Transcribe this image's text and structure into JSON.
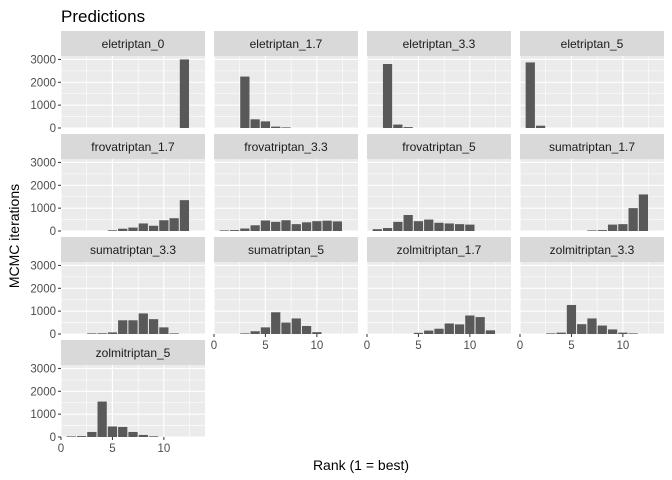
{
  "chart_data": {
    "type": "bar",
    "title": "Predictions",
    "xlabel": "Rank (1 = best)",
    "ylabel": "MCMC iterations",
    "xlim": [
      0,
      14
    ],
    "ylim": [
      0,
      3150
    ],
    "xticks": [
      0,
      5,
      10
    ],
    "yticks": [
      0,
      1000,
      2000,
      3000
    ],
    "grid": true,
    "colors": {
      "panel_bg": "#EBEBEB",
      "grid_major": "#FFFFFF",
      "strip_bg": "#D9D9D9",
      "bar": "#595959",
      "text": "#1A1A1A",
      "tick_text": "#4D4D4D"
    },
    "panels": [
      {
        "name": "eletriptan_0",
        "x": [
          12
        ],
        "values": [
          3000
        ]
      },
      {
        "name": "eletriptan_1.7",
        "x": [
          3,
          4,
          5,
          6,
          7
        ],
        "values": [
          2250,
          380,
          290,
          60,
          20
        ]
      },
      {
        "name": "eletriptan_3.3",
        "x": [
          2,
          3,
          4
        ],
        "values": [
          2800,
          150,
          40
        ]
      },
      {
        "name": "eletriptan_5",
        "x": [
          1,
          2
        ],
        "values": [
          2870,
          100
        ]
      },
      {
        "name": "frovatriptan_1.7",
        "x": [
          5,
          6,
          7,
          8,
          9,
          10,
          11,
          12
        ],
        "values": [
          30,
          100,
          150,
          330,
          230,
          470,
          560,
          1350
        ]
      },
      {
        "name": "frovatriptan_3.3",
        "x": [
          1,
          2,
          3,
          4,
          5,
          6,
          7,
          8,
          9,
          10,
          11,
          12
        ],
        "values": [
          10,
          40,
          110,
          250,
          460,
          400,
          470,
          300,
          380,
          430,
          450,
          420
        ]
      },
      {
        "name": "frovatriptan_5",
        "x": [
          1,
          2,
          3,
          4,
          5,
          6,
          7,
          8,
          9,
          10
        ],
        "values": [
          80,
          130,
          400,
          700,
          430,
          500,
          360,
          330,
          300,
          280
        ]
      },
      {
        "name": "sumatriptan_1.7",
        "x": [
          7,
          8,
          9,
          10,
          11,
          12
        ],
        "values": [
          10,
          40,
          280,
          300,
          1000,
          1600
        ]
      },
      {
        "name": "sumatriptan_3.3",
        "x": [
          3,
          4,
          5,
          6,
          7,
          8,
          9,
          10,
          11
        ],
        "values": [
          10,
          30,
          70,
          600,
          600,
          900,
          650,
          290,
          20
        ]
      },
      {
        "name": "sumatriptan_5",
        "x": [
          3,
          4,
          5,
          6,
          7,
          8,
          9,
          10
        ],
        "values": [
          10,
          120,
          290,
          950,
          500,
          680,
          350,
          80
        ]
      },
      {
        "name": "zolmitriptan_1.7",
        "x": [
          5,
          6,
          7,
          8,
          9,
          10,
          11,
          12
        ],
        "values": [
          50,
          150,
          230,
          460,
          420,
          810,
          740,
          160
        ]
      },
      {
        "name": "zolmitriptan_3.3",
        "x": [
          3,
          4,
          5,
          6,
          7,
          8,
          9,
          10,
          11
        ],
        "values": [
          20,
          60,
          1270,
          430,
          680,
          370,
          200,
          60,
          10
        ]
      },
      {
        "name": "zolmitriptan_5",
        "x": [
          1,
          2,
          3,
          4,
          5,
          6,
          7,
          8,
          9
        ],
        "values": [
          20,
          40,
          220,
          1550,
          460,
          440,
          220,
          90,
          30
        ]
      }
    ]
  }
}
